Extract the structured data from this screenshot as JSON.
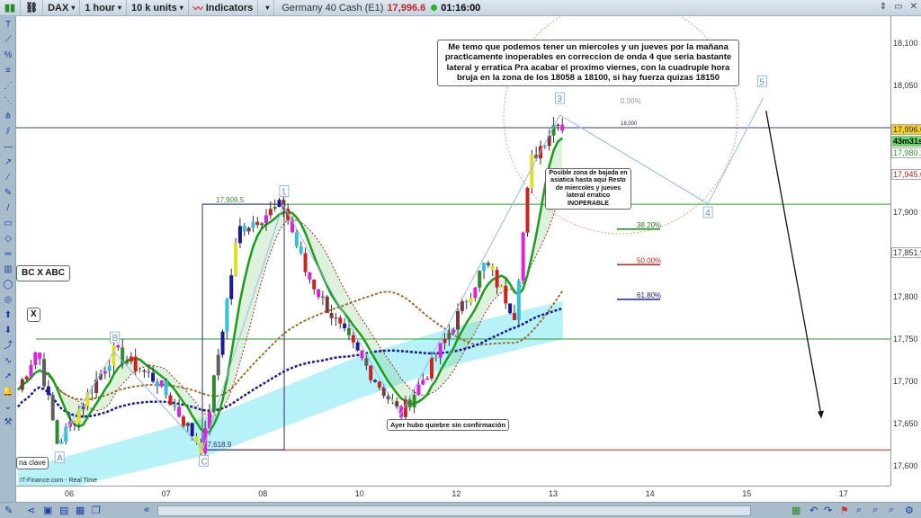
{
  "toolbar": {
    "symbol": "DAX",
    "timeframe": "1 hour",
    "units": "10 k units",
    "indicators": "Indicators",
    "instrument": "Germany 40 Cash (E1)",
    "price": "17,996.6",
    "clock": "01:16:00"
  },
  "colors": {
    "up": "#2e8b2e",
    "down": "#d0202a",
    "ma_fast": "#1aa01a",
    "ma_slow": "#c02020",
    "ma_dash_brown": "#a0702a",
    "ma_dash_navy": "#1a1a9a",
    "band": "#b6f2f8",
    "fib_38": "#1a8a1a",
    "fib_50": "#d02020",
    "fib_61": "#1a1aa0"
  },
  "axis": {
    "price_labels": [
      "18,100",
      "18,050",
      "17,900",
      "17,800",
      "17,750",
      "17,700",
      "17,650",
      "17,600"
    ],
    "price_values": [
      18100,
      18050,
      17900,
      17800,
      17750,
      17700,
      17650,
      17600
    ],
    "date_labels": [
      "06",
      "07",
      "08",
      "10",
      "12",
      "13",
      "14",
      "15",
      "17"
    ],
    "current_price": "17,996.6",
    "countdown": "43m31s",
    "level_green": "17,980.2",
    "level_red": "17,945.0",
    "level_box": "17,851.9"
  },
  "chart_data": {
    "type": "candlestick",
    "x_categories": [
      "06",
      "07",
      "08",
      "10",
      "12",
      "13",
      "14",
      "15",
      "17"
    ],
    "ylim": [
      17560,
      18130
    ],
    "price_path": [
      [
        -0.53,
        17690
      ],
      [
        -0.33,
        17740
      ],
      [
        -0.12,
        17625
      ],
      [
        0.46,
        17735
      ],
      [
        0.91,
        17700
      ],
      [
        1.38,
        17619
      ],
      [
        1.75,
        17880
      ],
      [
        2.21,
        17909
      ],
      [
        2.44,
        17830
      ],
      [
        2.81,
        17760
      ],
      [
        3.42,
        17660
      ],
      [
        3.75,
        17720
      ],
      [
        4.3,
        17840
      ],
      [
        4.6,
        17780
      ],
      [
        4.77,
        17960
      ],
      [
        5.07,
        18015
      ],
      [
        5.1,
        17996
      ]
    ],
    "horizontal_levels": [
      {
        "price": 18000,
        "label": "18,000"
      },
      {
        "price": 17909.5,
        "label": "17,909.5"
      },
      {
        "price": 17750
      },
      {
        "price": 17618.9,
        "label": "17,618.9"
      }
    ],
    "fibonacci": [
      {
        "label": "0.00%",
        "price": 18015
      },
      {
        "label": "38.20%",
        "price": 17880
      },
      {
        "label": "50.00%",
        "price": 17838
      },
      {
        "label": "61.80%",
        "price": 17797
      }
    ],
    "wave_labels": [
      {
        "text": "A",
        "x": -0.1,
        "price": 17610
      },
      {
        "text": "B",
        "x": 0.47,
        "price": 17752
      },
      {
        "text": "C",
        "x": 1.39,
        "price": 17606
      },
      {
        "text": "1",
        "x": 2.22,
        "price": 17925
      },
      {
        "text": "3",
        "x": 5.07,
        "price": 18035
      },
      {
        "text": "4",
        "x": 6.6,
        "price": 17900
      },
      {
        "text": "5",
        "x": 7.16,
        "price": 18055
      }
    ],
    "projection": [
      [
        5.07,
        18015
      ],
      [
        6.6,
        17910
      ],
      [
        7.17,
        18035
      ]
    ],
    "arrow": [
      [
        7.2,
        18020
      ],
      [
        7.77,
        17660
      ]
    ]
  },
  "notes": {
    "main": "Me temo que podemos tener un miercoles y un jueves por la mañana practicamente inoperables en correccion de onda 4 que seria bastante lateral y erratica Pra acabar el proximo viernes, con la cuadruple hora bruja en la zona de los 18058 a 18100, si hay fuerza quizas 18150",
    "zone": "Posible zona de bajada en asiatica hasta aqui Resto de miercoles y jueves lateral erratico INOPERABLE",
    "yesterday": "Ayer hubo quiebre sin confirmación",
    "abc": "BC  X  ABC",
    "x": "X",
    "zona_clave": "na clave",
    "source": "IT-Finance.com - Real Time"
  }
}
